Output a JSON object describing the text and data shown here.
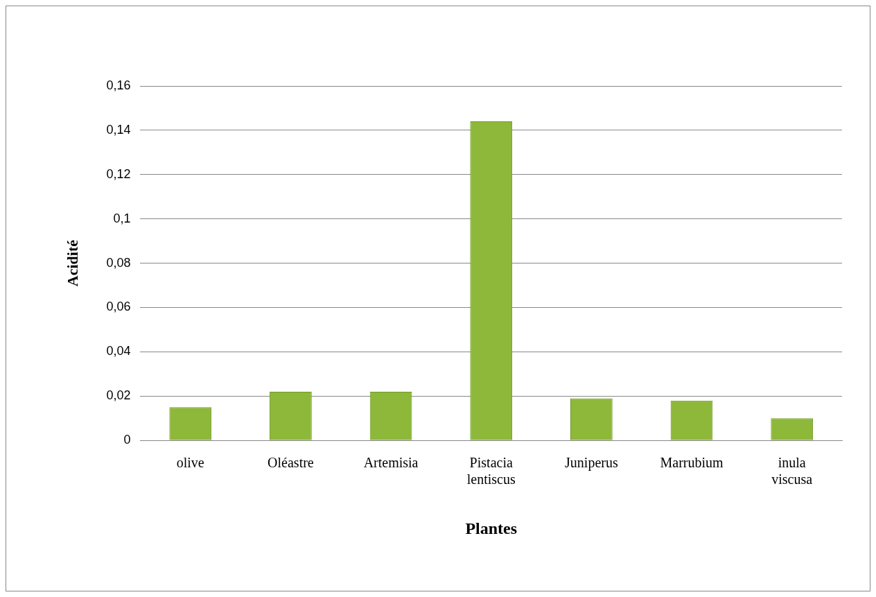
{
  "chart_data": {
    "type": "bar",
    "xlabel": "Plantes",
    "ylabel": "Acidité",
    "categories": [
      "olive",
      "Oléastre",
      "Artemisia",
      "Pistacia lentiscus",
      "Juniperus",
      "Marrubium",
      "inula viscusa"
    ],
    "values": [
      0.015,
      0.022,
      0.022,
      0.144,
      0.019,
      0.018,
      0.01
    ],
    "color": "#8db83a",
    "ylim": [
      0,
      0.16
    ],
    "yticks": [
      0,
      {
        "value": 0.02,
        "label": "0,02"
      },
      {
        "value": 0.04,
        "label": "0,04"
      },
      {
        "value": 0.06,
        "label": "0,06"
      },
      {
        "value": 0.08,
        "label": "0,08"
      },
      {
        "value": 0.1,
        "label": "0,1"
      },
      {
        "value": 0.12,
        "label": "0,12"
      },
      {
        "value": 0.14,
        "label": "0,14"
      },
      {
        "value": 0.16,
        "label": "0,16"
      }
    ],
    "grid": "y",
    "legend": false
  }
}
